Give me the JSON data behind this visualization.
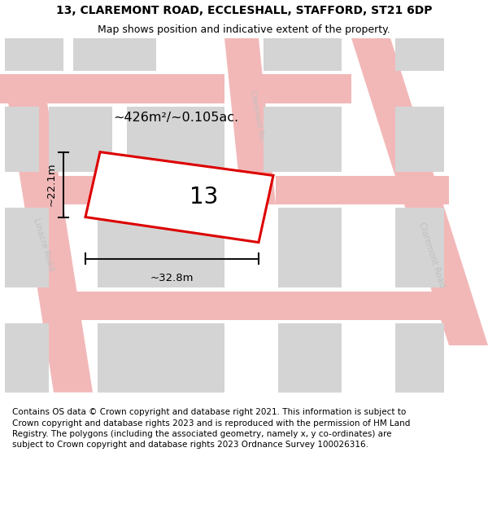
{
  "title_line1": "13, CLAREMONT ROAD, ECCLESHALL, STAFFORD, ST21 6DP",
  "title_line2": "Map shows position and indicative extent of the property.",
  "footer_text": "Contains OS data © Crown copyright and database right 2021. This information is subject to Crown copyright and database rights 2023 and is reproduced with the permission of HM Land Registry. The polygons (including the associated geometry, namely x, y co-ordinates) are subject to Crown copyright and database rights 2023 Ordnance Survey 100026316.",
  "map_bg": "#f2f2f2",
  "page_bg": "#ffffff",
  "plot_number": "13",
  "area_label": "~426m²/~0.105ac.",
  "width_label": "~32.8m",
  "height_label": "~22.1m",
  "road_color": "#f2b8b8",
  "building_color": "#d4d4d4",
  "plot_line_color": "#dd0000",
  "dim_line_color": "#111111",
  "road_label_color": "#c0c0c0",
  "title_fontsize": 10,
  "subtitle_fontsize": 9,
  "footer_fontsize": 7.5
}
